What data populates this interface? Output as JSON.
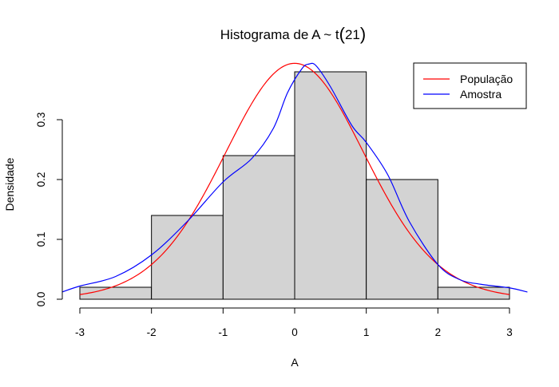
{
  "chart_data": {
    "type": "histogram",
    "title": "Histograma de A ~ t(21)",
    "title_parts": {
      "main": "Histograma de A ~ ",
      "dist": "t",
      "open_paren": "(",
      "df": "21",
      "close_paren": ")"
    },
    "xlabel": "A",
    "ylabel": "Densidade",
    "xlim": [
      -3,
      3
    ],
    "ylim": [
      0,
      0.4
    ],
    "x_ticks": [
      "-3",
      "-2",
      "-1",
      "0",
      "1",
      "2",
      "3"
    ],
    "y_ticks": [
      "0.0",
      "0.1",
      "0.2",
      "0.3"
    ],
    "bins": [
      {
        "x0": -3,
        "x1": -2,
        "density": 0.02
      },
      {
        "x0": -2,
        "x1": -1,
        "density": 0.14
      },
      {
        "x0": -1,
        "x1": 0,
        "density": 0.24
      },
      {
        "x0": 0,
        "x1": 1,
        "density": 0.38
      },
      {
        "x0": 1,
        "x1": 2,
        "density": 0.2
      },
      {
        "x0": 2,
        "x1": 3,
        "density": 0.02
      }
    ],
    "bar_fill": "#d3d3d3",
    "series": [
      {
        "name": "População",
        "color": "#ff0000",
        "distribution": "t",
        "df": 21,
        "domain": [
          -3,
          3
        ]
      },
      {
        "name": "Amostra",
        "color": "#0000ff",
        "kind": "sample density estimate",
        "x": [
          -3.25,
          -3.0,
          -2.5,
          -2.0,
          -1.5,
          -1.0,
          -0.6,
          -0.3,
          -0.1,
          0.1,
          0.2,
          0.3,
          0.5,
          0.8,
          1.0,
          1.3,
          1.6,
          2.0,
          2.3,
          2.6,
          3.0,
          3.25
        ],
        "y": [
          0.012,
          0.022,
          0.038,
          0.074,
          0.13,
          0.196,
          0.235,
          0.285,
          0.345,
          0.385,
          0.393,
          0.39,
          0.355,
          0.29,
          0.262,
          0.208,
          0.13,
          0.058,
          0.033,
          0.025,
          0.019,
          0.012
        ]
      }
    ],
    "legend": {
      "position": "top-right",
      "entries": [
        {
          "label": "População",
          "color": "#ff0000"
        },
        {
          "label": "Amostra",
          "color": "#0000ff"
        }
      ]
    }
  }
}
